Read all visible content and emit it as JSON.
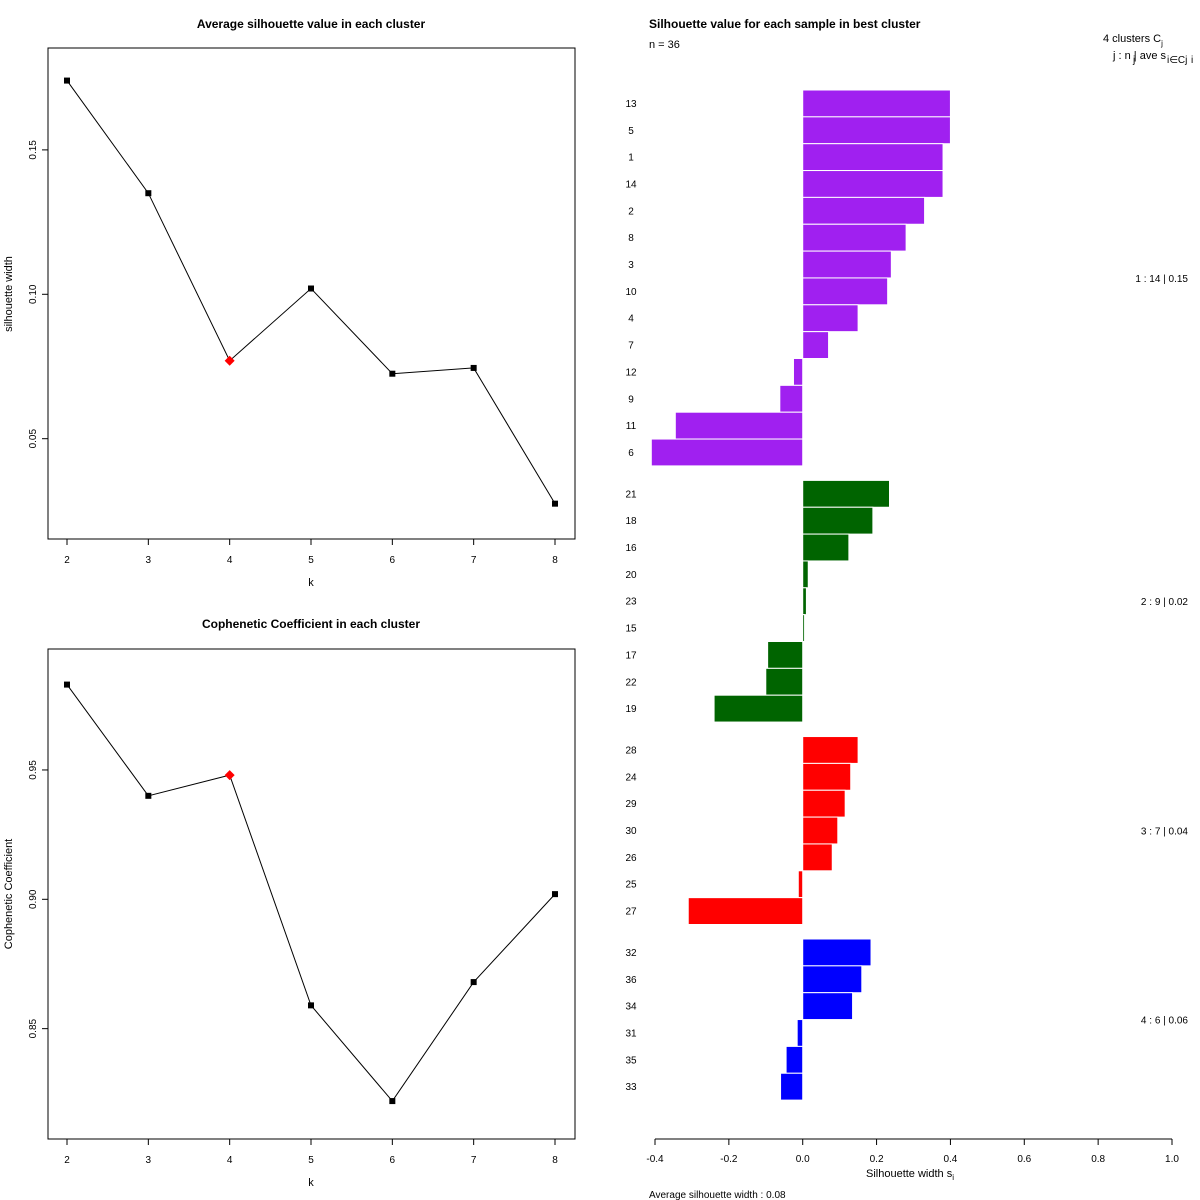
{
  "chart_data": [
    {
      "type": "line",
      "title": "Average silhouette value in each cluster",
      "xlabel": "k",
      "ylabel": "silhouette width",
      "x": [
        2,
        3,
        4,
        5,
        6,
        7,
        8
      ],
      "values": [
        0.174,
        0.135,
        0.077,
        0.102,
        0.0725,
        0.0745,
        0.0275
      ],
      "highlight_k": 4,
      "xlim": [
        2,
        8
      ],
      "ylim": [
        0.0215,
        0.1787
      ],
      "yticks": [
        0.05,
        0.1,
        0.15
      ],
      "ytick_labels": [
        "0.05",
        "0.10",
        "0.15"
      ],
      "xtick_labels": [
        "2",
        "3",
        "4",
        "5",
        "6",
        "7",
        "8"
      ],
      "colors": {
        "line": "#000000",
        "point": "#000000",
        "highlight": "#ff0000"
      }
    },
    {
      "type": "line",
      "title": "Cophenetic Coefficient in each cluster",
      "xlabel": "k",
      "ylabel": "Cophenetic Coefficient",
      "x": [
        2,
        3,
        4,
        5,
        6,
        7,
        8
      ],
      "values": [
        0.983,
        0.94,
        0.948,
        0.859,
        0.822,
        0.868,
        0.902
      ],
      "highlight_k": 4,
      "xlim": [
        2,
        8
      ],
      "ylim": [
        0.8143,
        0.9898
      ],
      "yticks": [
        0.85,
        0.9,
        0.95
      ],
      "ytick_labels": [
        "0.85",
        "0.90",
        "0.95"
      ],
      "xtick_labels": [
        "2",
        "3",
        "4",
        "5",
        "6",
        "7",
        "8"
      ],
      "colors": {
        "line": "#000000",
        "point": "#000000",
        "highlight": "#ff0000"
      }
    },
    {
      "type": "bar",
      "orientation": "horizontal",
      "title": "Silhouette value for each sample in best cluster",
      "n_label": "n = 36",
      "header": {
        "clusters": "4  clusters  C",
        "clusters_sub": "j",
        "legend": "j :  n  | ave   s",
        "legend_sub": "j",
        "legend_sub2": "i∈Cj",
        "legend_sub3": "i"
      },
      "xlabel": "Silhouette width s",
      "xlabel_sub": "i",
      "footer": "Average silhouette width :  0.08",
      "xlim": [
        -0.4,
        1.0
      ],
      "xticks": [
        -0.4,
        -0.2,
        0.0,
        0.2,
        0.4,
        0.6,
        0.8,
        1.0
      ],
      "xtick_labels": [
        "-0.4",
        "-0.2",
        "0.0",
        "0.2",
        "0.4",
        "0.6",
        "0.8",
        "1.0"
      ],
      "clusters": [
        {
          "summary": "1 :  14  |  0.15",
          "color": "#a020f0",
          "samples": [
            "13",
            "5",
            "1",
            "14",
            "2",
            "8",
            "3",
            "10",
            "4",
            "7",
            "12",
            "9",
            "11",
            "6"
          ],
          "values": [
            0.4,
            0.4,
            0.38,
            0.38,
            0.33,
            0.28,
            0.24,
            0.23,
            0.15,
            0.07,
            -0.025,
            -0.062,
            -0.345,
            -0.41
          ]
        },
        {
          "summary": "2 :  9  |  0.02",
          "color": "#006400",
          "samples": [
            "21",
            "18",
            "16",
            "20",
            "23",
            "15",
            "17",
            "22",
            "19"
          ],
          "values": [
            0.235,
            0.19,
            0.125,
            0.015,
            0.01,
            0.005,
            -0.095,
            -0.1,
            -0.24
          ]
        },
        {
          "summary": "3 :  7  |  0.04",
          "color": "#ff0000",
          "samples": [
            "28",
            "24",
            "29",
            "30",
            "26",
            "25",
            "27"
          ],
          "values": [
            0.15,
            0.13,
            0.115,
            0.095,
            0.08,
            -0.012,
            -0.31
          ]
        },
        {
          "summary": "4 :  6  |  0.06",
          "color": "#0000ff",
          "samples": [
            "32",
            "36",
            "34",
            "31",
            "35",
            "33"
          ],
          "values": [
            0.185,
            0.16,
            0.135,
            -0.015,
            -0.045,
            -0.06
          ]
        }
      ]
    }
  ]
}
